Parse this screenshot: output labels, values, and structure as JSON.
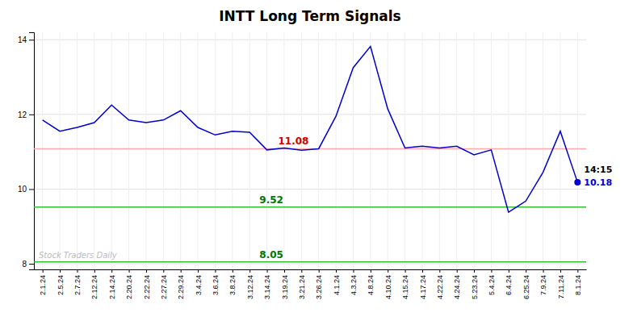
{
  "chart_data": {
    "type": "line",
    "title": "INTT Long Term Signals",
    "categories": [
      "2.1.24",
      "2.5.24",
      "2.7.24",
      "2.12.24",
      "2.14.24",
      "2.20.24",
      "2.22.24",
      "2.27.24",
      "2.29.24",
      "3.4.24",
      "3.6.24",
      "3.8.24",
      "3.12.24",
      "3.14.24",
      "3.19.24",
      "3.21.24",
      "3.26.24",
      "4.1.24",
      "4.3.24",
      "4.8.24",
      "4.10.24",
      "4.15.24",
      "4.17.24",
      "4.22.24",
      "4.24.24",
      "5.23.24",
      "5.4.24",
      "6.4.24",
      "6.25.24",
      "7.9.24",
      "7.11.24",
      "8.1.24"
    ],
    "values": [
      11.85,
      11.55,
      11.65,
      11.78,
      12.25,
      11.85,
      11.78,
      11.85,
      12.1,
      11.65,
      11.45,
      11.55,
      11.52,
      11.05,
      11.1,
      11.04,
      11.08,
      11.95,
      13.25,
      13.82,
      12.15,
      11.1,
      11.15,
      11.1,
      11.15,
      10.92,
      11.05,
      9.38,
      9.68,
      10.45,
      11.55,
      10.18
    ],
    "color": "#0000cc",
    "reference_lines": [
      {
        "value": 11.08,
        "label": "11.08",
        "color": "#ffaaaa",
        "label_color": "#cc0000"
      },
      {
        "value": 9.52,
        "label": "9.52",
        "color": "#33bb33",
        "label_color": "#007700"
      },
      {
        "value": 8.05,
        "label": "8.05",
        "color": "#33bb33",
        "label_color": "#007700"
      }
    ],
    "last_point_labels": [
      "14:15",
      "10.18"
    ],
    "watermark": "Stock Traders Daily",
    "ylim": [
      7.85,
      14.2
    ],
    "yticks": [
      8,
      10,
      12,
      14
    ],
    "grid": true
  }
}
